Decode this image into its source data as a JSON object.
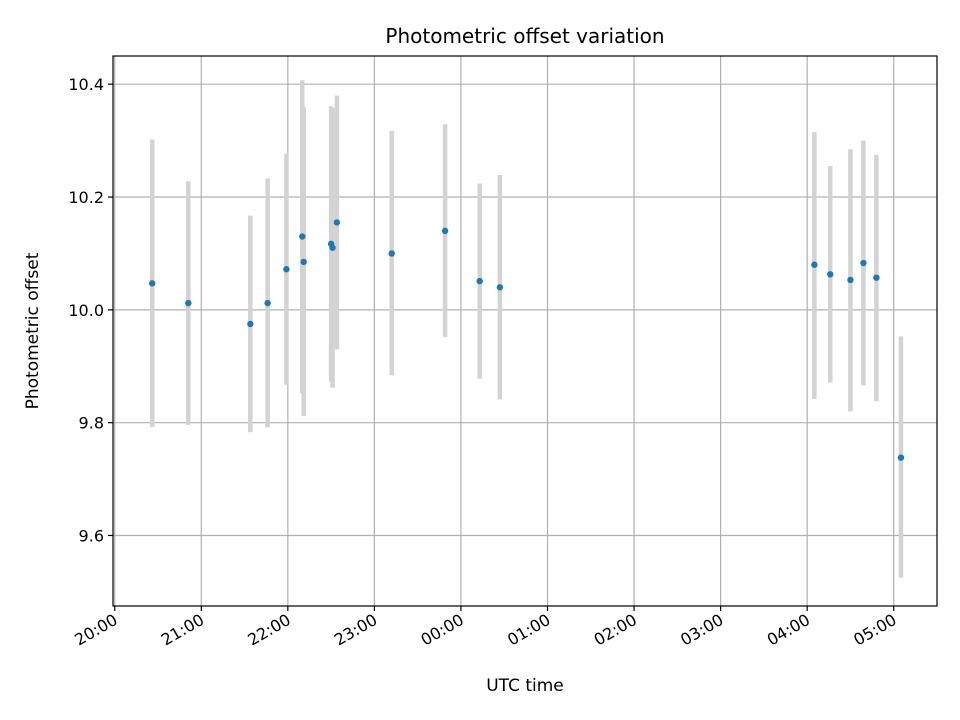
{
  "chart_data": {
    "type": "scatter",
    "title": "Photometric offset variation",
    "xlabel": "UTC time",
    "ylabel": "Photometric offset",
    "x_unit": "hours since 20:00 UTC",
    "xlim": [
      -0.02,
      9.5
    ],
    "ylim": [
      9.475,
      10.45
    ],
    "grid": true,
    "x_ticks": [
      {
        "value": 0,
        "label": "20:00"
      },
      {
        "value": 1,
        "label": "21:00"
      },
      {
        "value": 2,
        "label": "22:00"
      },
      {
        "value": 3,
        "label": "23:00"
      },
      {
        "value": 4,
        "label": "00:00"
      },
      {
        "value": 5,
        "label": "01:00"
      },
      {
        "value": 6,
        "label": "02:00"
      },
      {
        "value": 7,
        "label": "03:00"
      },
      {
        "value": 8,
        "label": "04:00"
      },
      {
        "value": 9,
        "label": "05:00"
      }
    ],
    "y_ticks": [
      {
        "value": 9.6,
        "label": "9.6"
      },
      {
        "value": 9.8,
        "label": "9.8"
      },
      {
        "value": 10.0,
        "label": "10.0"
      },
      {
        "value": 10.2,
        "label": "10.2"
      },
      {
        "value": 10.4,
        "label": "10.4"
      }
    ],
    "colors": {
      "points": "#1f77b4",
      "error_bars": "#d3d3d3",
      "grid": "#b0b0b0"
    },
    "points": [
      {
        "time": "20:26",
        "y": 10.047,
        "low": 9.792,
        "high": 10.302
      },
      {
        "time": "20:51",
        "y": 10.012,
        "low": 9.796,
        "high": 10.228
      },
      {
        "time": "21:34",
        "y": 9.975,
        "low": 9.783,
        "high": 10.167
      },
      {
        "time": "21:46",
        "y": 10.012,
        "low": 9.792,
        "high": 10.233
      },
      {
        "time": "21:59",
        "y": 10.072,
        "low": 9.867,
        "high": 10.277
      },
      {
        "time": "22:10",
        "y": 10.13,
        "low": 9.852,
        "high": 10.407
      },
      {
        "time": "22:11",
        "y": 10.085,
        "low": 9.812,
        "high": 10.359
      },
      {
        "time": "22:30",
        "y": 10.117,
        "low": 9.873,
        "high": 10.361
      },
      {
        "time": "22:31",
        "y": 10.11,
        "low": 9.862,
        "high": 10.358
      },
      {
        "time": "22:34",
        "y": 10.155,
        "low": 9.93,
        "high": 10.38
      },
      {
        "time": "23:12",
        "y": 10.1,
        "low": 9.884,
        "high": 10.317
      },
      {
        "time": "23:49",
        "y": 10.14,
        "low": 9.952,
        "high": 10.329
      },
      {
        "time": "00:13",
        "y": 10.051,
        "low": 9.878,
        "high": 10.224
      },
      {
        "time": "00:27",
        "y": 10.04,
        "low": 9.841,
        "high": 10.239
      },
      {
        "time": "04:05",
        "y": 10.08,
        "low": 9.842,
        "high": 10.315
      },
      {
        "time": "04:16",
        "y": 10.063,
        "low": 9.871,
        "high": 10.255
      },
      {
        "time": "04:30",
        "y": 10.053,
        "low": 9.82,
        "high": 10.285
      },
      {
        "time": "04:39",
        "y": 10.083,
        "low": 9.866,
        "high": 10.3
      },
      {
        "time": "04:48",
        "y": 10.057,
        "low": 9.838,
        "high": 10.275
      },
      {
        "time": "05:05",
        "y": 9.738,
        "low": 9.525,
        "high": 9.953
      }
    ]
  }
}
